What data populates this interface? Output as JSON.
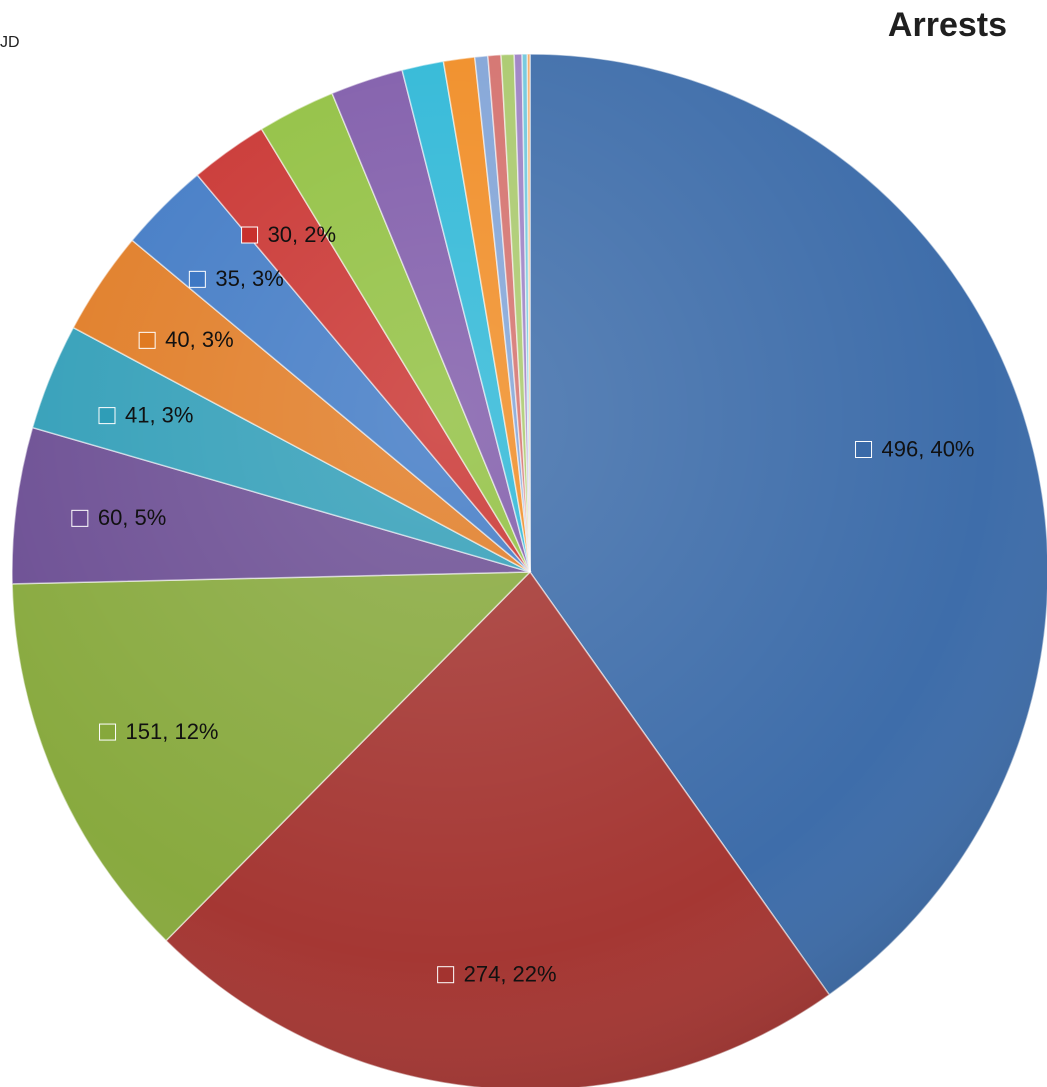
{
  "chart_data": {
    "type": "pie",
    "title": "Arrests",
    "corner_text": "JD",
    "slices": [
      {
        "value": 496,
        "percent": "40%",
        "label": "496, 40%",
        "color": "#3a6aa8"
      },
      {
        "value": 274,
        "percent": "22%",
        "label": "274, 22%",
        "color": "#a3332f"
      },
      {
        "value": 151,
        "percent": "12%",
        "label": "151, 12%",
        "color": "#86a83b"
      },
      {
        "value": 60,
        "percent": "5%",
        "label": "60, 5%",
        "color": "#6a4c92"
      },
      {
        "value": 41,
        "percent": "3%",
        "label": "41, 3%",
        "color": "#2f9db7"
      },
      {
        "value": 40,
        "percent": "3%",
        "label": "40, 3%",
        "color": "#e07a22"
      },
      {
        "value": 35,
        "percent": "3%",
        "label": "35, 3%",
        "color": "#3e78c4"
      },
      {
        "value": 30,
        "percent": "2%",
        "label": "30, 2%",
        "color": "#c8302d"
      },
      {
        "value": 30,
        "percent": "",
        "label": "",
        "color": "#8fbf3d"
      },
      {
        "value": 28,
        "percent": "",
        "label": "",
        "color": "#7d58a8"
      },
      {
        "value": 16,
        "percent": "",
        "label": "",
        "color": "#2ab6d6"
      },
      {
        "value": 12,
        "percent": "",
        "label": "",
        "color": "#f08a20"
      },
      {
        "value": 5,
        "percent": "",
        "label": "",
        "color": "#7fa2d6"
      },
      {
        "value": 5,
        "percent": "",
        "label": "",
        "color": "#d36e6a"
      },
      {
        "value": 5,
        "percent": "",
        "label": "",
        "color": "#a8c86a"
      },
      {
        "value": 3,
        "percent": "",
        "label": "",
        "color": "#9b7fc3"
      },
      {
        "value": 2,
        "percent": "",
        "label": "",
        "color": "#6fc7dc"
      },
      {
        "value": 1,
        "percent": "",
        "label": "",
        "color": "#f3a45a"
      }
    ],
    "legend": "none"
  }
}
